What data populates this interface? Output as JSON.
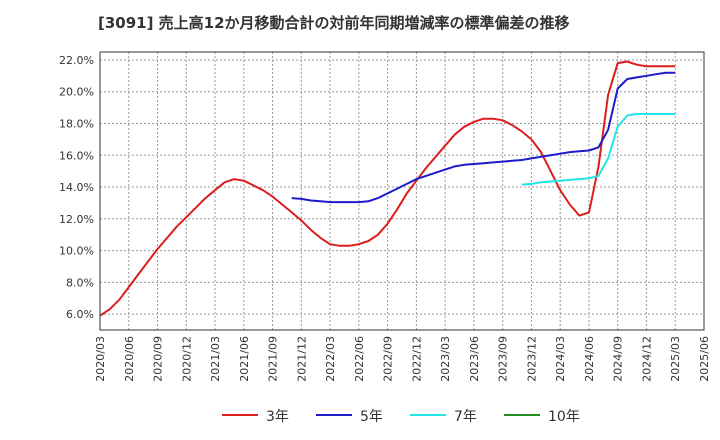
{
  "chart_data": {
    "type": "line",
    "title": "[3091]  売上高12か月移動合計の対前年同期増減率の標準偏差の推移",
    "x_tick_labels": [
      "2020/03",
      "2020/06",
      "2020/09",
      "2020/12",
      "2021/03",
      "2021/06",
      "2021/09",
      "2021/12",
      "2022/03",
      "2022/06",
      "2022/09",
      "2022/12",
      "2023/03",
      "2023/06",
      "2023/09",
      "2023/12",
      "2024/03",
      "2024/06",
      "2024/09",
      "2024/12",
      "2025/03",
      "2025/06"
    ],
    "y_tick_labels": [
      "6.0%",
      "8.0%",
      "10.0%",
      "12.0%",
      "14.0%",
      "16.0%",
      "18.0%",
      "20.0%",
      "22.0%"
    ],
    "ylim": [
      5.0,
      22.5
    ],
    "grid": true,
    "legend_position": "bottom",
    "series": [
      {
        "name": "3年",
        "color": "#dd1c1c",
        "x": [
          "2020/03",
          "2020/04",
          "2020/05",
          "2020/06",
          "2020/07",
          "2020/08",
          "2020/09",
          "2020/10",
          "2020/11",
          "2020/12",
          "2021/01",
          "2021/02",
          "2021/03",
          "2021/04",
          "2021/05",
          "2021/06",
          "2021/07",
          "2021/08",
          "2021/09",
          "2021/10",
          "2021/11",
          "2021/12",
          "2022/01",
          "2022/02",
          "2022/03",
          "2022/04",
          "2022/05",
          "2022/06",
          "2022/07",
          "2022/08",
          "2022/09",
          "2022/10",
          "2022/11",
          "2022/12",
          "2023/01",
          "2023/02",
          "2023/03",
          "2023/04",
          "2023/05",
          "2023/06",
          "2023/07",
          "2023/08",
          "2023/09",
          "2023/10",
          "2023/11",
          "2023/12",
          "2024/01",
          "2024/02",
          "2024/03",
          "2024/04",
          "2024/05",
          "2024/06",
          "2024/07",
          "2024/08",
          "2024/09",
          "2024/10",
          "2024/11",
          "2024/12",
          "2025/01",
          "2025/02",
          "2025/03"
        ],
        "values": [
          5.9,
          6.3,
          6.9,
          7.7,
          8.5,
          9.3,
          10.1,
          10.8,
          11.5,
          12.1,
          12.7,
          13.3,
          13.8,
          14.3,
          14.5,
          14.4,
          14.1,
          13.8,
          13.4,
          12.9,
          12.4,
          11.9,
          11.3,
          10.8,
          10.4,
          10.3,
          10.3,
          10.4,
          10.6,
          11.0,
          11.7,
          12.6,
          13.6,
          14.4,
          15.2,
          15.9,
          16.6,
          17.3,
          17.8,
          18.1,
          18.3,
          18.3,
          18.2,
          17.9,
          17.5,
          17.0,
          16.2,
          15.0,
          13.8,
          12.9,
          12.2,
          12.4,
          15.3,
          19.8,
          21.8,
          21.9,
          21.7,
          21.6,
          21.6,
          21.6,
          21.6
        ]
      },
      {
        "name": "5年",
        "color": "#1c1ccc",
        "x": [
          "2021/11",
          "2021/12",
          "2022/01",
          "2022/02",
          "2022/03",
          "2022/04",
          "2022/05",
          "2022/06",
          "2022/07",
          "2022/08",
          "2022/09",
          "2022/10",
          "2022/11",
          "2022/12",
          "2023/01",
          "2023/02",
          "2023/03",
          "2023/04",
          "2023/05",
          "2023/06",
          "2023/07",
          "2023/08",
          "2023/09",
          "2023/10",
          "2023/11",
          "2023/12",
          "2024/01",
          "2024/02",
          "2024/03",
          "2024/04",
          "2024/05",
          "2024/06",
          "2024/07",
          "2024/08",
          "2024/09",
          "2024/10",
          "2024/11",
          "2024/12",
          "2025/01",
          "2025/02",
          "2025/03"
        ],
        "values": [
          13.3,
          13.25,
          13.15,
          13.1,
          13.05,
          13.05,
          13.05,
          13.05,
          13.1,
          13.3,
          13.6,
          13.9,
          14.2,
          14.5,
          14.7,
          14.9,
          15.1,
          15.3,
          15.4,
          15.45,
          15.5,
          15.55,
          15.6,
          15.65,
          15.7,
          15.8,
          15.9,
          16.0,
          16.1,
          16.2,
          16.25,
          16.3,
          16.5,
          17.6,
          20.2,
          20.8,
          20.9,
          21.0,
          21.1,
          21.2,
          21.2
        ]
      },
      {
        "name": "7年",
        "color": "#22e5e5",
        "x": [
          "2023/11",
          "2023/12",
          "2024/01",
          "2024/02",
          "2024/03",
          "2024/04",
          "2024/05",
          "2024/06",
          "2024/07",
          "2024/08",
          "2024/09",
          "2024/10",
          "2024/11",
          "2024/12",
          "2025/01",
          "2025/02",
          "2025/03"
        ],
        "values": [
          14.15,
          14.2,
          14.3,
          14.35,
          14.4,
          14.45,
          14.5,
          14.55,
          14.7,
          15.8,
          17.8,
          18.5,
          18.6,
          18.6,
          18.6,
          18.6,
          18.6
        ]
      },
      {
        "name": "10年",
        "color": "#228b22",
        "x": [],
        "values": []
      }
    ]
  }
}
